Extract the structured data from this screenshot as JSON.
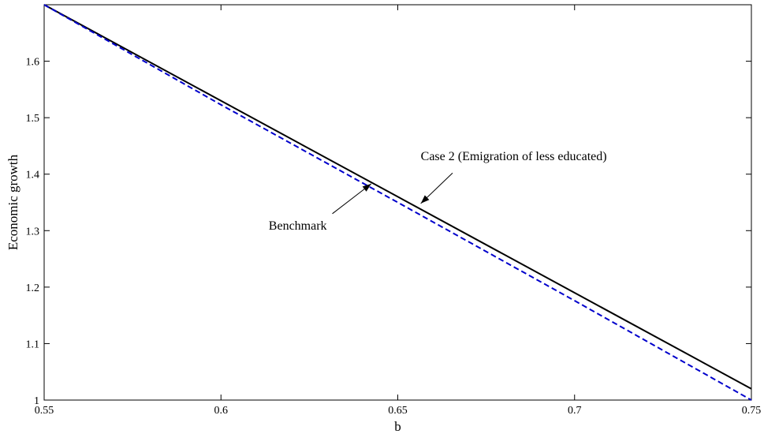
{
  "chart_data": {
    "type": "line",
    "title": "",
    "xlabel": "b",
    "ylabel": "Economic growth",
    "xlim": [
      0.55,
      0.75
    ],
    "ylim": [
      1.0,
      1.7
    ],
    "xticks": [
      0.55,
      0.6,
      0.65,
      0.7,
      0.75
    ],
    "xtick_labels": [
      "0.55",
      "0.6",
      "0.65",
      "0.7",
      "0.75"
    ],
    "yticks": [
      1.0,
      1.1,
      1.2,
      1.3,
      1.4,
      1.5,
      1.6
    ],
    "ytick_labels": [
      "1",
      "1.1",
      "1.2",
      "1.3",
      "1.4",
      "1.5",
      "1.6"
    ],
    "grid": false,
    "legend": "none",
    "series": [
      {
        "key": "case2",
        "style": "solid",
        "color": "#000000",
        "x": [
          0.55,
          0.75
        ],
        "y": [
          1.7,
          1.02
        ]
      },
      {
        "key": "benchmark",
        "style": "dashed",
        "color": "#0000cc",
        "x": [
          0.55,
          0.6,
          0.65,
          0.7,
          0.75
        ],
        "y": [
          1.7,
          1.523,
          1.35,
          1.176,
          1.0
        ]
      }
    ],
    "annotations": [
      {
        "key": "case2",
        "text": "Case 2 (Emigration of less educated)",
        "text_x": 0.6565,
        "text_y": 1.425,
        "arrow_from": [
          0.6655,
          1.402
        ],
        "arrow_to": [
          0.6565,
          1.348
        ]
      },
      {
        "key": "benchmark",
        "text": "Benchmark",
        "text_x": 0.6135,
        "text_y": 1.302,
        "arrow_from": [
          0.6315,
          1.33
        ],
        "arrow_to": [
          0.6425,
          1.383
        ]
      }
    ]
  }
}
